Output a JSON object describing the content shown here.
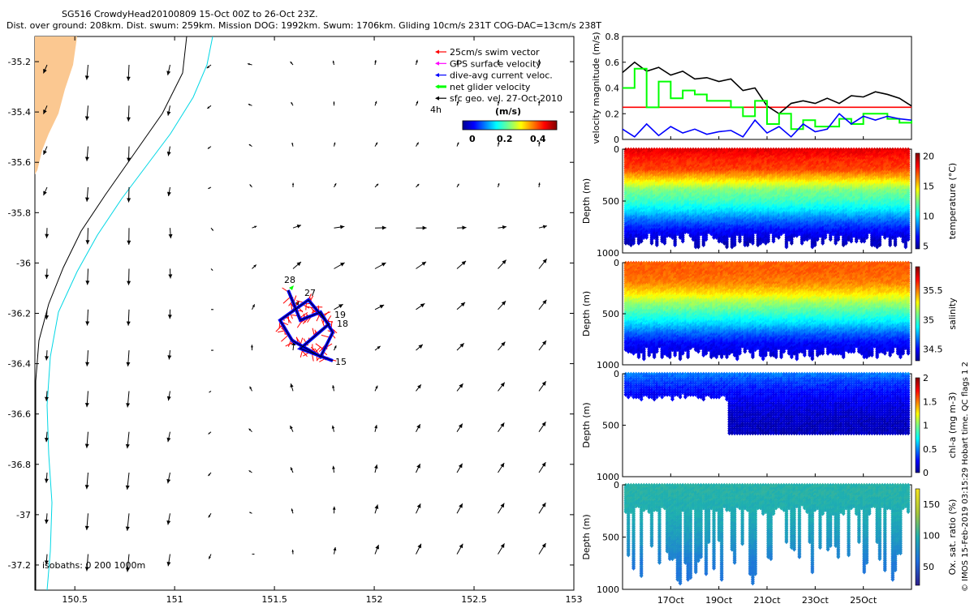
{
  "header": {
    "line1": "SG516 CrowdyHead20100809 15-Oct 00Z to 26-Oct 23Z.",
    "line2": "Dist. over ground: 208km. Dist. swum: 259km. Mission DOG: 1992km. Swum: 1706km. Gliding 10cm/s 231T COG-DAC=13cm/s 238T"
  },
  "colors": {
    "land": "#fbc891",
    "isobath_200": "#000000",
    "isobath_1000": "#00d7e5",
    "velocity_red": "#ff0000",
    "velocity_green": "#00ff00",
    "velocity_blue": "#0000ff",
    "velocity_black": "#000000"
  },
  "map": {
    "legend": [
      {
        "label": "25cm/s swim vector",
        "color": "#ff0000"
      },
      {
        "label": "GPS surface velocity",
        "color": "#ff00ff"
      },
      {
        "label": "dive-avg current veloc.",
        "color": "#0000ff"
      },
      {
        "label": "net glider velocity",
        "color": "#00ff00"
      },
      {
        "label": "sfc geo. vel. 27-Oct-2010",
        "color": "#000000"
      }
    ],
    "legend_extra": "4h",
    "colorbar": {
      "title": "(m/s)",
      "ticks": [
        "0",
        "0.2",
        "0.4"
      ],
      "colormap": "jet"
    },
    "isobaths_label": "isobaths: 0   200  1000m",
    "xticks": [
      "150.5",
      "151",
      "151.5",
      "152",
      "152.5",
      "153"
    ],
    "yticks": [
      "-35.2",
      "-35.4",
      "-35.6",
      "-35.8",
      "-36",
      "-36.2",
      "-36.4",
      "-36.6",
      "-36.8",
      "-37",
      "-37.2"
    ],
    "track_labels": [
      "28",
      "27",
      "19",
      "18",
      "15"
    ]
  },
  "side": {
    "time_ticks": [
      "17Oct",
      "19Oct",
      "21Oct",
      "23Oct",
      "25Oct"
    ],
    "footer_vertical": "© IMOS 15-Feb-2019 03:15:29 Hobart time. QC flags 1  2",
    "panels": [
      {
        "kind": "line",
        "ylabel": "velocity magnitude (m/s)",
        "yticks": [
          "0",
          "0.2",
          "0.4",
          "0.6",
          "0.8"
        ]
      },
      {
        "kind": "section",
        "ylabel": "Depth (m)",
        "yticks": [
          "0",
          "500",
          "1000"
        ],
        "cbar_label": "temperature (°C)",
        "cbar_ticks": [
          "5",
          "10",
          "15",
          "20"
        ]
      },
      {
        "kind": "section",
        "ylabel": "Depth (m)",
        "yticks": [
          "0",
          "500",
          "1000"
        ],
        "cbar_label": "salinity",
        "cbar_ticks": [
          "34.5",
          "35",
          "35.5"
        ]
      },
      {
        "kind": "section",
        "ylabel": "Depth (m)",
        "yticks": [
          "0",
          "500",
          "1000"
        ],
        "cbar_label": "chl-a (mg m-3)",
        "cbar_ticks": [
          "0",
          "0.5",
          "1",
          "1.5",
          "2"
        ]
      },
      {
        "kind": "section",
        "ylabel": "Depth (m)",
        "yticks": [
          "0",
          "500",
          "1000"
        ],
        "cbar_label": "Ox. sat. ratio (%)",
        "cbar_ticks": [
          "50",
          "100",
          "150"
        ]
      }
    ]
  },
  "chart_data": [
    {
      "type": "scatter",
      "description_type": "quiver map",
      "xlim": [
        150.3,
        153.0
      ],
      "ylim": [
        -37.3,
        -35.1
      ],
      "xlabel": "",
      "ylabel": "",
      "series": [
        {
          "name": "sfc geo. vel. 27-Oct-2010",
          "grid_lon_start": 150.35,
          "grid_lon_step": 0.2,
          "grid_lat_start": -35.2,
          "grid_lat_step": -0.2
        }
      ],
      "track_days": [
        15,
        18,
        19,
        27,
        28
      ]
    },
    {
      "type": "line",
      "xlim": [
        15,
        27
      ],
      "ylim": [
        0,
        0.8
      ],
      "ylabel": "velocity magnitude (m/s)",
      "series": [
        {
          "name": "25cm/s swim vector",
          "color": "#ff0000",
          "x": [
            15,
            27
          ],
          "y": [
            0.25,
            0.25
          ]
        },
        {
          "name": "sfc geo. vel.",
          "color": "#000000",
          "x": [
            15,
            15.5,
            16,
            16.5,
            17,
            17.5,
            18,
            18.5,
            19,
            19.5,
            20,
            20.5,
            21,
            21.5,
            22,
            22.5,
            23,
            23.5,
            24,
            24.5,
            25,
            25.5,
            26,
            26.5,
            27
          ],
          "y": [
            0.52,
            0.6,
            0.53,
            0.56,
            0.5,
            0.53,
            0.47,
            0.48,
            0.45,
            0.47,
            0.38,
            0.4,
            0.26,
            0.2,
            0.28,
            0.3,
            0.28,
            0.32,
            0.28,
            0.34,
            0.33,
            0.37,
            0.35,
            0.32,
            0.26
          ]
        },
        {
          "name": "net glider velocity",
          "color": "#00ff00",
          "x": [
            15,
            15.5,
            16,
            16.5,
            17,
            17.5,
            18,
            18.5,
            19,
            19.5,
            20,
            20.5,
            21,
            21.5,
            22,
            22.5,
            23,
            23.5,
            24,
            24.5,
            25,
            25.5,
            26,
            26.5,
            27
          ],
          "y": [
            0.4,
            0.55,
            0.25,
            0.45,
            0.32,
            0.38,
            0.35,
            0.3,
            0.3,
            0.25,
            0.18,
            0.3,
            0.12,
            0.2,
            0.08,
            0.15,
            0.1,
            0.1,
            0.16,
            0.12,
            0.2,
            0.2,
            0.16,
            0.13,
            0.15
          ]
        },
        {
          "name": "dive-avg current veloc.",
          "color": "#0000ff",
          "x": [
            15,
            15.5,
            16,
            16.5,
            17,
            17.5,
            18,
            18.5,
            19,
            19.5,
            20,
            20.5,
            21,
            21.5,
            22,
            22.5,
            23,
            23.5,
            24,
            24.5,
            25,
            25.5,
            26,
            26.5,
            27
          ],
          "y": [
            0.08,
            0.02,
            0.12,
            0.03,
            0.1,
            0.05,
            0.08,
            0.04,
            0.06,
            0.07,
            0.02,
            0.15,
            0.05,
            0.1,
            0.02,
            0.12,
            0.06,
            0.08,
            0.2,
            0.12,
            0.18,
            0.15,
            0.18,
            0.16,
            0.15
          ]
        }
      ]
    },
    {
      "type": "heatmap",
      "ylabel": "Depth (m)",
      "ylim": [
        0,
        1000
      ],
      "value_label": "temperature (°C)",
      "vlim": [
        4.5,
        20.5
      ],
      "profile": {
        "depth": [
          0,
          100,
          200,
          300,
          400,
          500,
          600,
          700,
          800,
          900
        ],
        "value": [
          19,
          18,
          17.5,
          15,
          12.5,
          11.5,
          10,
          8,
          6.5,
          5.5
        ]
      },
      "max_depth_range": [
        800,
        950
      ]
    },
    {
      "type": "heatmap",
      "ylabel": "Depth (m)",
      "ylim": [
        0,
        1000
      ],
      "value_label": "salinity",
      "vlim": [
        34.3,
        35.9
      ],
      "profile": {
        "depth": [
          0,
          100,
          200,
          300,
          400,
          500,
          600,
          700,
          800,
          900
        ],
        "value": [
          35.55,
          35.55,
          35.5,
          35.35,
          35.15,
          35.0,
          34.85,
          34.65,
          34.5,
          34.45
        ]
      },
      "max_depth_range": [
        820,
        950
      ]
    },
    {
      "type": "heatmap",
      "ylabel": "Depth (m)",
      "ylim": [
        0,
        1000
      ],
      "value_label": "chl-a (mg m-3)",
      "vlim": [
        0,
        2
      ],
      "profile": {
        "depth": [
          0,
          100,
          200,
          300,
          400,
          500
        ],
        "value": [
          0.5,
          0.35,
          0.25,
          0.2,
          0.15,
          0.12
        ]
      },
      "max_depth_range": [
        250,
        600
      ]
    },
    {
      "type": "heatmap",
      "ylabel": "Depth (m)",
      "ylim": [
        0,
        1000
      ],
      "value_label": "Ox. sat. ratio (%)",
      "vlim": [
        20,
        175
      ],
      "profile": {
        "depth": [
          0,
          100,
          200,
          300,
          400,
          500,
          600,
          700,
          800,
          900
        ],
        "value": [
          100,
          100,
          97,
          95,
          90,
          85,
          78,
          70,
          65,
          65
        ]
      },
      "max_depth_range": [
        500,
        950
      ]
    }
  ]
}
